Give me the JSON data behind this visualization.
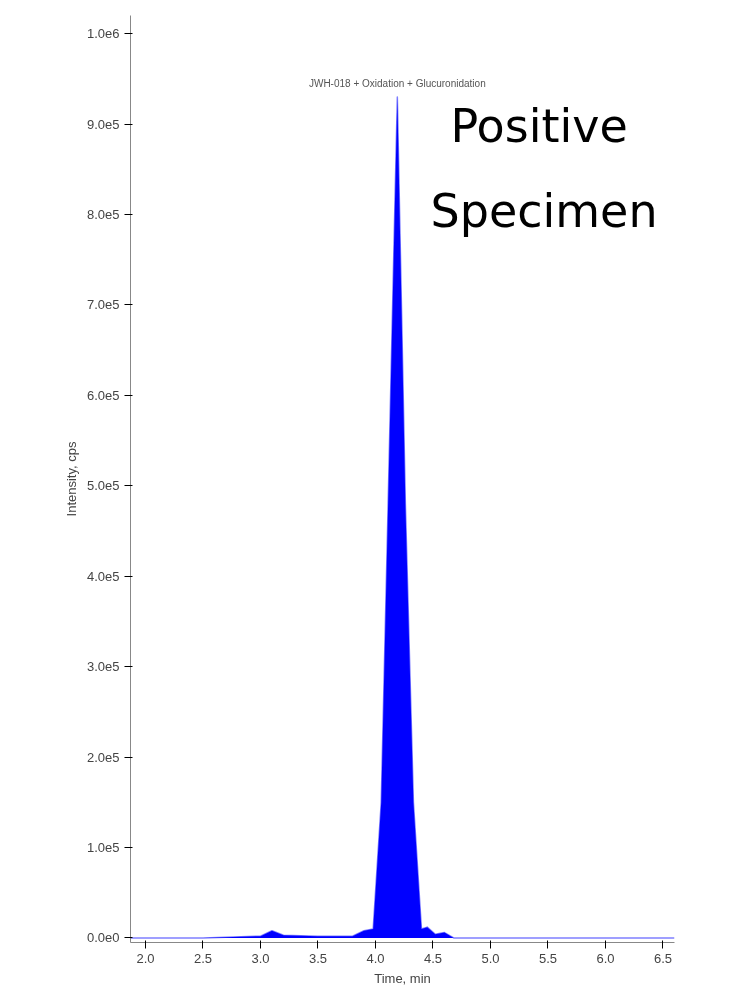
{
  "chart_data": {
    "type": "area",
    "xlabel": "Time, min",
    "ylabel": "Intensity, cps",
    "annotations": [
      {
        "text": "JWH-018 + Oxidation + Glucuronidation",
        "x": 4.19,
        "y": 930000
      },
      "Positive Specimen"
    ],
    "series": [
      {
        "color": "#0000ff",
        "x": [
          1.87,
          2.5,
          3.0,
          3.1,
          3.2,
          3.5,
          3.8,
          3.9,
          3.98,
          4.05,
          4.11,
          4.19,
          4.26,
          4.33,
          4.4,
          4.45,
          4.52,
          4.6,
          4.68,
          5.0,
          6.0,
          6.6
        ],
        "values": [
          0,
          0,
          2000,
          8000,
          3000,
          2000,
          2000,
          8000,
          10000,
          150000,
          480000,
          930000,
          480000,
          150000,
          10000,
          12000,
          4000,
          6000,
          0,
          0,
          0,
          0
        ]
      }
    ],
    "xlim": [
      1.87,
      6.6
    ],
    "ylim": [
      -5000,
      1020000
    ],
    "xticks": [
      {
        "value": 2,
        "label": "2.0"
      },
      2.5,
      {
        "value": 3,
        "label": "3.0"
      },
      3.5,
      {
        "value": 4,
        "label": "4.0"
      },
      4.5,
      {
        "value": 5,
        "label": "5.0"
      },
      5.5,
      {
        "value": 6,
        "label": "6.0"
      },
      6.5
    ],
    "yticks": [
      {
        "value": 0,
        "label": "0.0e0"
      },
      {
        "value": 100000,
        "label": "1.0e5"
      },
      {
        "value": 200000,
        "label": "2.0e5"
      },
      {
        "value": 300000,
        "label": "3.0e5"
      },
      {
        "value": 400000,
        "label": "4.0e5"
      },
      {
        "value": 500000,
        "label": "5.0e5"
      },
      {
        "value": 600000,
        "label": "6.0e5"
      },
      {
        "value": 700000,
        "label": "7.0e5"
      },
      {
        "value": 800000,
        "label": "8.0e5"
      },
      {
        "value": 900000,
        "label": "9.0e5"
      },
      {
        "value": 1000000,
        "label": "1.0e6"
      }
    ],
    "grid": false
  }
}
